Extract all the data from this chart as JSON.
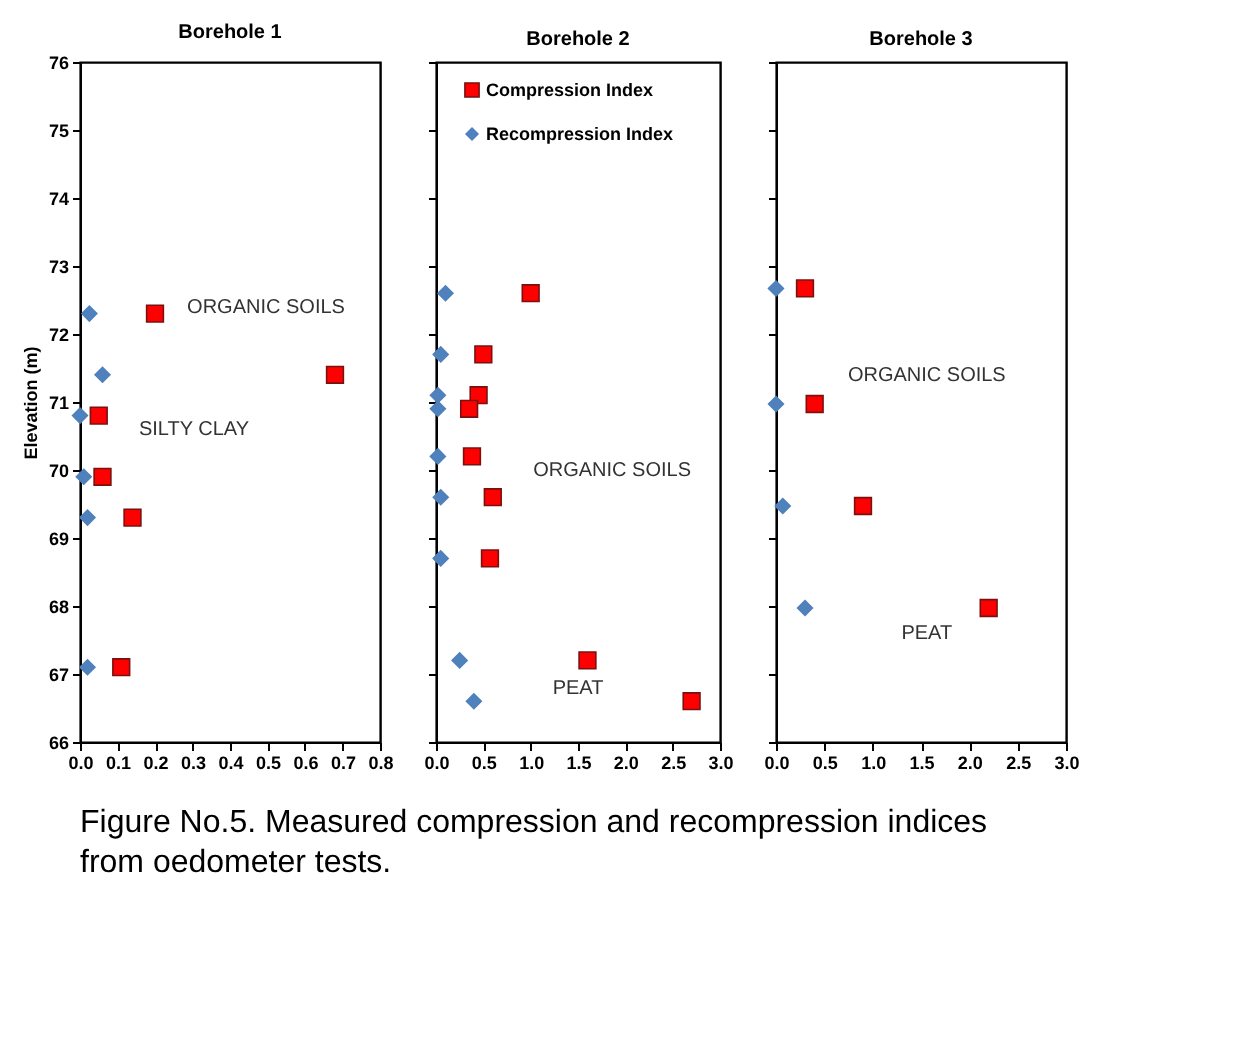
{
  "chart_data": [
    {
      "type": "scatter",
      "title": "Borehole 1",
      "ylabel": "Elevation (m)",
      "xlim": [
        0,
        0.8
      ],
      "xticks": [
        {
          "value": 0,
          "label": "0.0"
        },
        0.1,
        0.2,
        0.3,
        0.4,
        0.5,
        0.6,
        0.7,
        0.8
      ],
      "ylim": [
        66,
        76
      ],
      "yticks": [
        66,
        67,
        68,
        69,
        70,
        71,
        72,
        73,
        74,
        75,
        76
      ],
      "grid": false,
      "legend": false,
      "series": [
        {
          "color": "#ff0000",
          "marker": "square",
          "x": [
            0.2,
            0.68,
            0.05,
            0.06,
            0.14,
            0.11
          ],
          "values": [
            72.3,
            71.4,
            70.8,
            69.9,
            69.3,
            67.1
          ]
        },
        {
          "color": "#4f81bd",
          "marker": "diamond",
          "x": [
            0.025,
            0.06,
            0.0,
            0.01,
            0.02,
            0.02
          ],
          "values": [
            72.3,
            71.4,
            70.8,
            69.9,
            69.3,
            67.1
          ]
        }
      ],
      "annotations": [
        "ORGANIC SOILS",
        "SILTY CLAY",
        "Figure No.5. Measured compression and recompression indices from oedometer tests."
      ]
    },
    {
      "type": "scatter",
      "title": "Borehole 2",
      "xlim": [
        0,
        3.0
      ],
      "xticks": [
        {
          "value": 0,
          "label": "0.0"
        },
        0.5,
        {
          "value": 1,
          "label": "1.0"
        },
        1.5,
        {
          "value": 2,
          "label": "2.0"
        },
        2.5,
        {
          "value": 3,
          "label": "3.0"
        }
      ],
      "ylim": [
        66,
        76
      ],
      "yticks": [
        66,
        67,
        68,
        69,
        70,
        71,
        72,
        73,
        74,
        75,
        76
      ],
      "tick_labels": "x",
      "grid": false,
      "legend": "top right",
      "series": [
        {
          "name": "Compression Index",
          "color": "#ff0000",
          "marker": "square",
          "x": [
            1.0,
            0.5,
            0.45,
            0.35,
            0.38,
            0.6,
            0.57,
            1.6,
            2.7
          ],
          "values": [
            72.6,
            71.7,
            71.1,
            70.9,
            70.2,
            69.6,
            68.7,
            67.2,
            66.6
          ]
        },
        {
          "name": "Recompression Index",
          "color": "#4f81bd",
          "marker": "diamond",
          "x": [
            0.1,
            0.05,
            0.02,
            0.02,
            0.02,
            0.05,
            0.05,
            0.25,
            0.4
          ],
          "values": [
            72.6,
            71.7,
            71.1,
            70.9,
            70.2,
            69.6,
            68.7,
            67.2,
            66.6
          ]
        }
      ],
      "annotations": [
        "ORGANIC SOILS",
        "PEAT"
      ]
    },
    {
      "type": "scatter",
      "title": "Borehole 3",
      "xlim": [
        0,
        3.0
      ],
      "xticks": [
        {
          "value": 0,
          "label": "0.0"
        },
        0.5,
        {
          "value": 1,
          "label": "1.0"
        },
        1.5,
        {
          "value": 2,
          "label": "2.0"
        },
        2.5,
        {
          "value": 3,
          "label": "3.0"
        }
      ],
      "ylim": [
        66,
        76
      ],
      "yticks": [
        66,
        67,
        68,
        69,
        70,
        71,
        72,
        73,
        74,
        75,
        76
      ],
      "tick_labels": "x",
      "grid": false,
      "legend": false,
      "series": [
        {
          "color": "#ff0000",
          "marker": "square",
          "x": [
            0.3,
            0.4,
            0.9,
            2.2
          ],
          "values": [
            72.67,
            70.97,
            69.47,
            67.97
          ]
        },
        {
          "color": "#4f81bd",
          "marker": "diamond",
          "x": [
            0.0,
            0.0,
            0.07,
            0.3
          ],
          "values": [
            72.67,
            70.97,
            69.47,
            67.97
          ]
        }
      ],
      "annotations": [
        "ORGANIC SOILS",
        "PEAT"
      ]
    }
  ]
}
